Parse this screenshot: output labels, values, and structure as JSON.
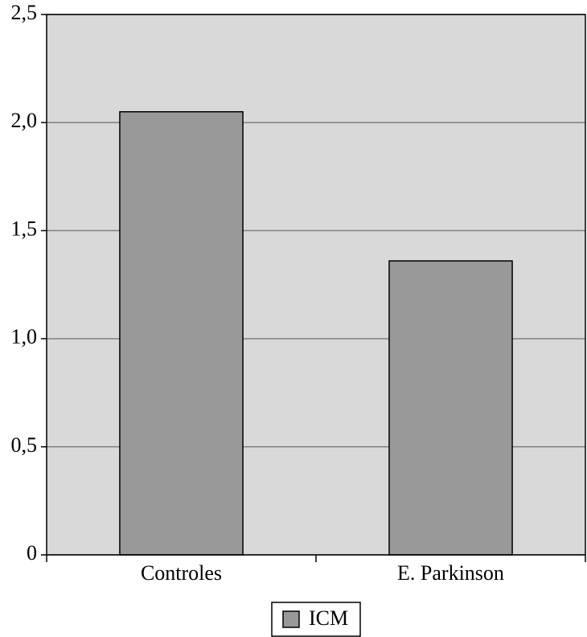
{
  "chart_data": {
    "type": "bar",
    "categories": [
      "Controles",
      "E. Parkinson"
    ],
    "series": [
      {
        "name": "ICM",
        "color": "#999999",
        "values": [
          2.05,
          1.36
        ]
      }
    ],
    "ylim": [
      0,
      2.5
    ],
    "yticks": [
      0,
      {
        "value": 0.5,
        "label": "0,5"
      },
      {
        "value": 1,
        "label": "1,0"
      },
      {
        "value": 1.5,
        "label": "1,5"
      },
      {
        "value": 2,
        "label": "2,0"
      },
      {
        "value": 2.5,
        "label": "2,5"
      }
    ],
    "grid": true,
    "legend": "bottom"
  }
}
